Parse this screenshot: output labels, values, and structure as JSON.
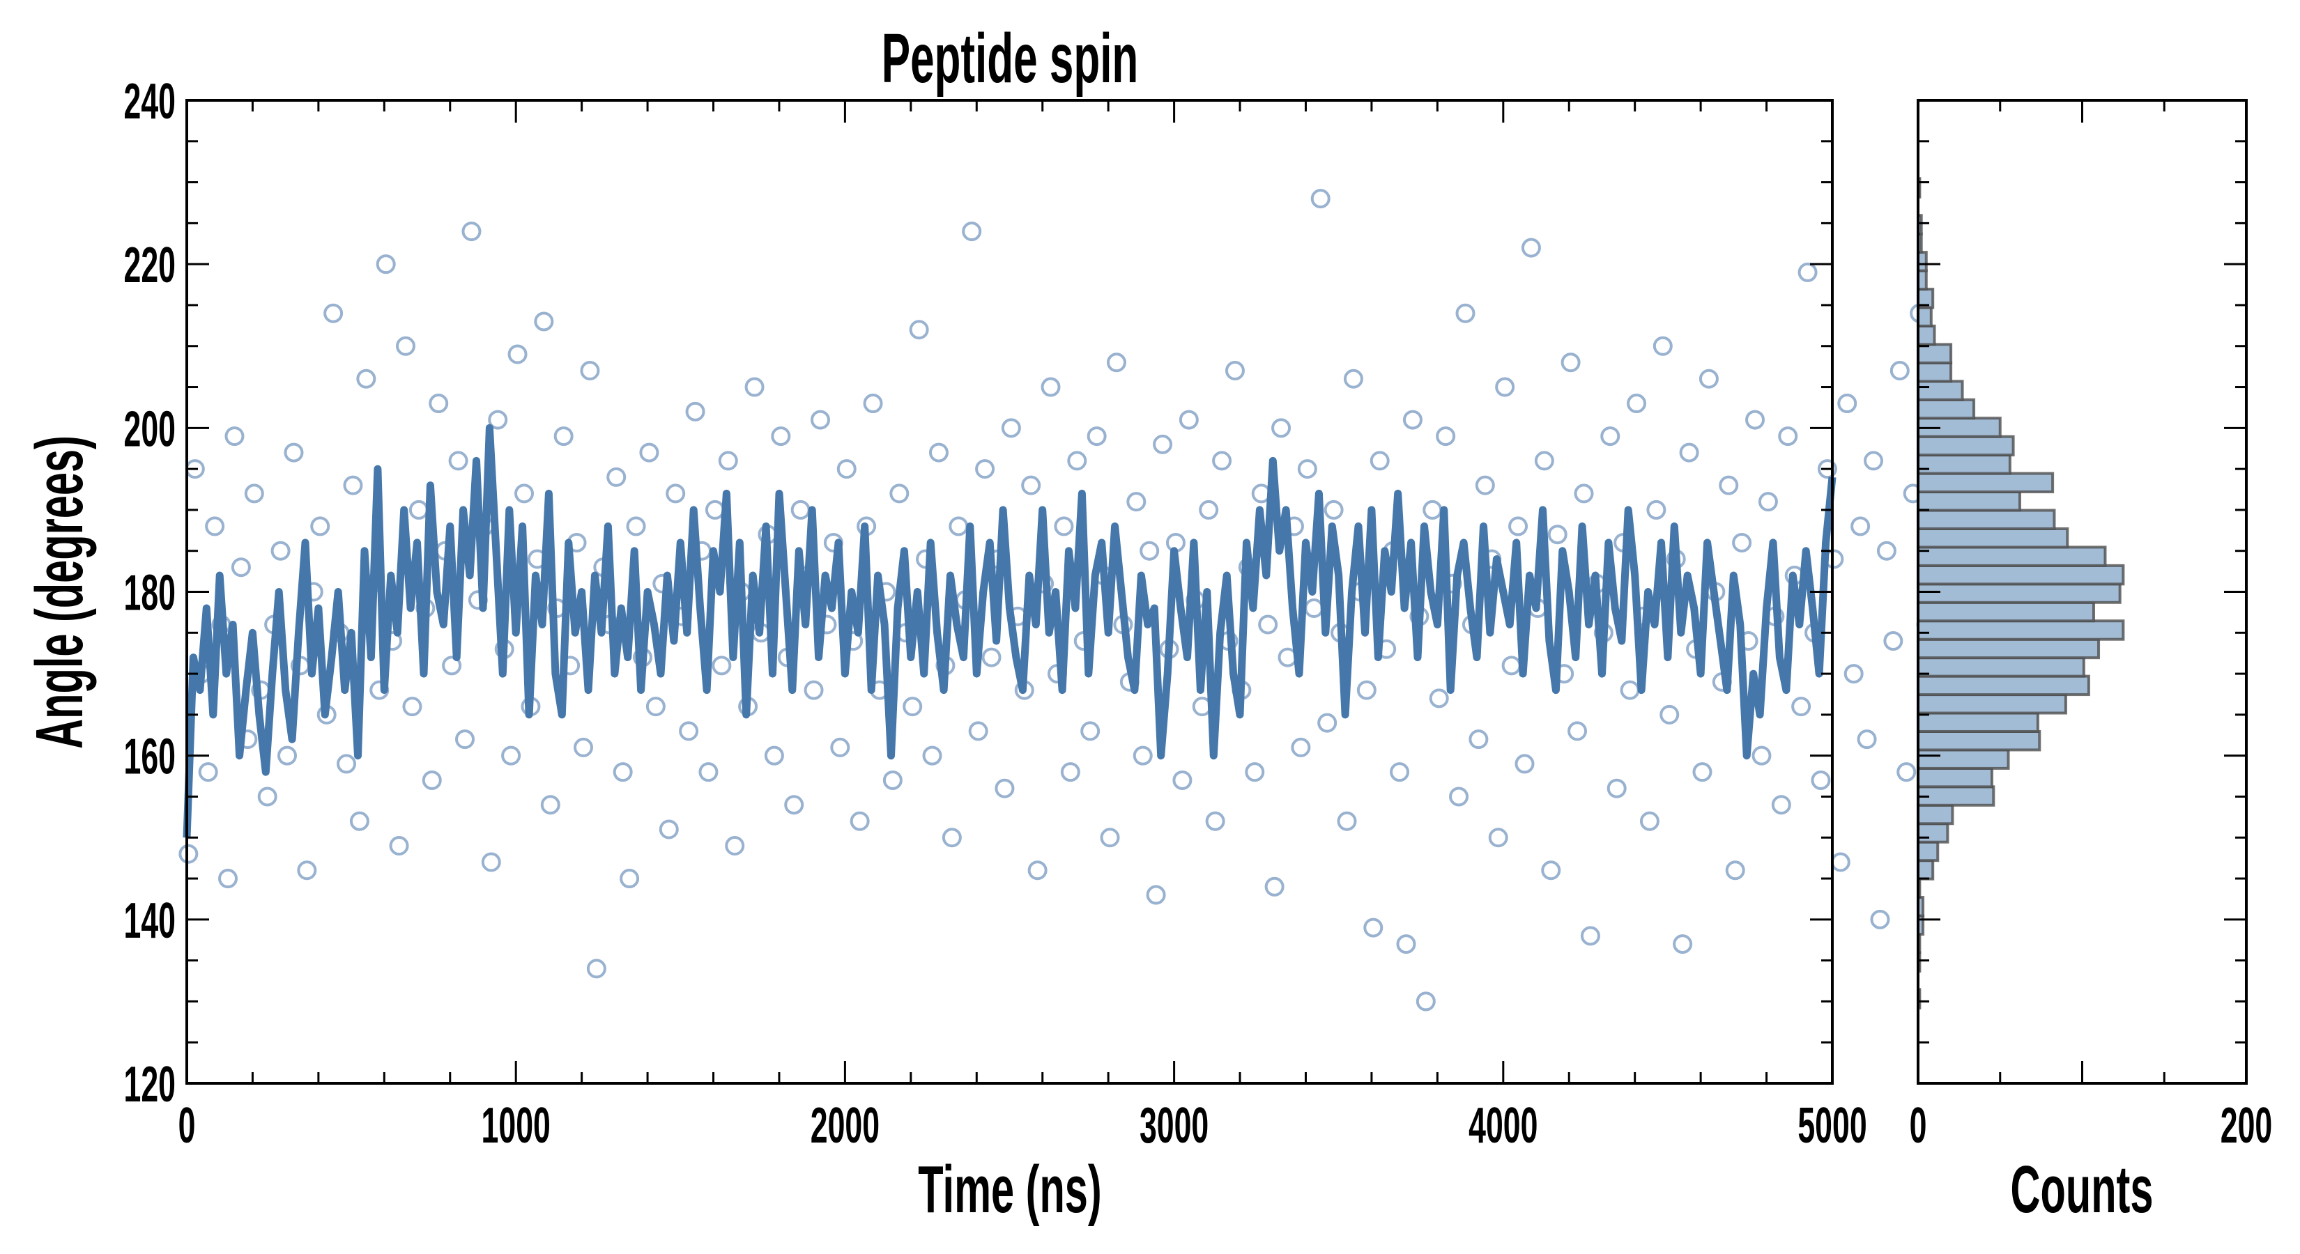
{
  "chart_data": [
    {
      "type": "scatter",
      "title": "Peptide spin",
      "xlabel": "Time (ns)",
      "ylabel": "Angle (degrees)",
      "xlim": [
        0,
        5000
      ],
      "ylim": [
        120,
        240
      ],
      "x_ticks": [
        "0",
        "1000",
        "2000",
        "3000",
        "4000",
        "5000"
      ],
      "y_ticks": [
        "120",
        "140",
        "160",
        "180",
        "200",
        "220",
        "240"
      ],
      "grid": false,
      "scatter": {
        "name": "raw angle",
        "marker": "open-circle",
        "t0": 5,
        "dt": 20,
        "y": [
          148,
          195,
          170,
          158,
          188,
          176,
          145,
          199,
          183,
          162,
          192,
          168,
          155,
          176,
          185,
          160,
          197,
          171,
          146,
          180,
          188,
          165,
          214,
          175,
          159,
          193,
          152,
          206,
          181,
          168,
          220,
          174,
          149,
          210,
          166,
          190,
          178,
          157,
          203,
          185,
          171,
          196,
          162,
          224,
          179,
          188,
          147,
          201,
          173,
          160,
          209,
          192,
          166,
          184,
          213,
          154,
          178,
          199,
          171,
          186,
          161,
          207,
          134,
          183,
          176,
          194,
          158,
          145,
          188,
          172,
          197,
          166,
          181,
          151,
          192,
          177,
          163,
          202,
          185,
          158,
          190,
          171,
          196,
          149,
          180,
          166,
          205,
          175,
          187,
          160,
          199,
          172,
          154,
          190,
          182,
          168,
          201,
          176,
          186,
          161,
          195,
          174,
          152,
          188,
          203,
          168,
          180,
          157,
          192,
          175,
          166,
          212,
          184,
          160,
          197,
          171,
          150,
          188,
          179,
          224,
          163,
          195,
          172,
          184,
          156,
          200,
          177,
          168,
          193,
          146,
          181,
          205,
          170,
          188,
          158,
          196,
          174,
          163,
          199,
          182,
          150,
          208,
          176,
          169,
          191,
          160,
          185,
          143,
          198,
          173,
          186,
          157,
          201,
          179,
          166,
          190,
          152,
          196,
          174,
          207,
          168,
          183,
          158,
          192,
          176,
          144,
          200,
          172,
          188,
          161,
          195,
          178,
          228,
          164,
          190,
          175,
          152,
          206,
          180,
          168,
          139,
          196,
          173,
          185,
          158,
          137,
          201,
          177,
          130,
          190,
          167,
          199,
          181,
          155,
          214,
          176,
          162,
          193,
          184,
          150,
          205,
          171,
          188,
          159,
          222,
          178,
          196,
          146,
          187,
          170,
          208,
          163,
          192,
          138,
          181,
          175,
          199,
          156,
          186,
          168,
          203,
          177,
          152,
          190,
          210,
          165,
          184,
          137,
          197,
          173,
          158,
          206,
          180,
          169,
          193,
          146,
          186,
          174,
          201,
          160,
          191,
          177,
          154,
          199,
          182,
          166,
          219,
          175,
          157,
          195,
          184,
          147,
          203,
          170,
          188,
          162,
          196,
          140,
          185,
          174,
          207,
          158,
          192,
          214,
          176,
          155,
          198,
          200
        ]
      },
      "line": {
        "name": "smoothed angle",
        "t0": 0,
        "dt": 20,
        "y": [
          150,
          172,
          168,
          178,
          165,
          182,
          170,
          176,
          160,
          168,
          175,
          165,
          158,
          170,
          180,
          168,
          162,
          175,
          186,
          170,
          178,
          165,
          172,
          180,
          168,
          175,
          160,
          185,
          172,
          195,
          168,
          182,
          175,
          190,
          178,
          186,
          170,
          193,
          180,
          176,
          188,
          172,
          190,
          182,
          196,
          178,
          200,
          185,
          170,
          190,
          175,
          188,
          165,
          182,
          176,
          192,
          170,
          165,
          186,
          175,
          180,
          168,
          182,
          175,
          188,
          170,
          178,
          172,
          185,
          168,
          180,
          176,
          170,
          182,
          174,
          186,
          175,
          190,
          178,
          168,
          185,
          180,
          192,
          172,
          186,
          165,
          182,
          175,
          188,
          170,
          192,
          180,
          168,
          185,
          176,
          190,
          172,
          182,
          178,
          186,
          170,
          180,
          175,
          188,
          168,
          182,
          176,
          160,
          178,
          185,
          172,
          180,
          170,
          186,
          175,
          168,
          182,
          176,
          172,
          188,
          170,
          180,
          186,
          174,
          190,
          178,
          172,
          168,
          182,
          176,
          190,
          175,
          180,
          168,
          185,
          178,
          192,
          170,
          182,
          186,
          175,
          188,
          180,
          172,
          168,
          182,
          176,
          178,
          160,
          170,
          185,
          178,
          172,
          186,
          168,
          180,
          160,
          175,
          182,
          170,
          165,
          186,
          178,
          190,
          182,
          196,
          185,
          190,
          178,
          170,
          186,
          180,
          192,
          175,
          188,
          182,
          165,
          180,
          188,
          175,
          190,
          172,
          185,
          180,
          192,
          178,
          186,
          172,
          188,
          180,
          176,
          190,
          168,
          182,
          186,
          178,
          172,
          188,
          175,
          184,
          180,
          176,
          186,
          170,
          182,
          178,
          190,
          174,
          168,
          185,
          180,
          172,
          188,
          176,
          182,
          170,
          186,
          178,
          174,
          190,
          182,
          168,
          180,
          176,
          186,
          172,
          188,
          175,
          182,
          178,
          170,
          186,
          180,
          174,
          168,
          182,
          176,
          160,
          170,
          165,
          178,
          186,
          172,
          168,
          182,
          176,
          185,
          178,
          170,
          186,
          194
        ]
      },
      "colors": {
        "line": "#4577aa",
        "marker": "#8eaacb"
      }
    },
    {
      "type": "bar",
      "orientation": "horizontal",
      "title": "",
      "xlabel": "Counts",
      "ylabel": "",
      "xlim": [
        0,
        200
      ],
      "ylim": [
        120,
        240
      ],
      "x_ticks": [
        "0",
        "200"
      ],
      "bin_start": 129.2,
      "bin_width": 2.25,
      "counts": [
        1,
        0,
        1,
        1,
        3,
        3,
        1,
        9,
        12,
        18,
        21,
        46,
        45,
        55,
        74,
        73,
        90,
        104,
        101,
        110,
        125,
        107,
        123,
        125,
        114,
        91,
        83,
        62,
        82,
        56,
        58,
        50,
        34,
        27,
        20,
        20,
        10,
        8,
        9,
        5,
        5,
        2,
        2,
        0,
        1
      ],
      "colors": {
        "fill": "#a3bcd6",
        "edge": "#4d4d4d"
      }
    }
  ]
}
